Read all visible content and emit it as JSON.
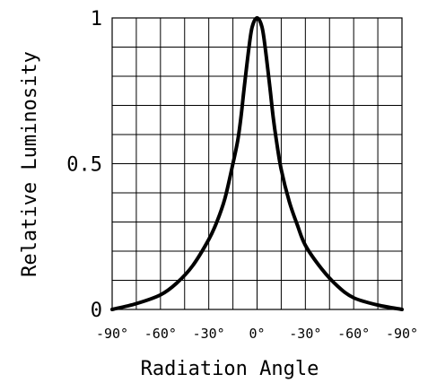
{
  "chart_data": {
    "type": "line",
    "title": "",
    "xlabel": "Radiation Angle",
    "ylabel": "Relative Luminosity",
    "x_tick_labels": [
      "-90°",
      "-60°",
      "-30°",
      "0°",
      "-30°",
      "-60°",
      "-90°"
    ],
    "y_tick_labels": [
      "0",
      "0.5",
      "1"
    ],
    "xlim": [
      -90,
      90
    ],
    "ylim": [
      0,
      1
    ],
    "grid": true,
    "x_grid_step": 15,
    "y_grid_step": 0.1,
    "series": [
      {
        "x": [
          -90,
          -75,
          -60,
          -50,
          -40,
          -30,
          -25,
          -20,
          -15,
          -12,
          -10,
          -8,
          -5,
          -3,
          0,
          3,
          5,
          8,
          10,
          12,
          15,
          20,
          25,
          30,
          40,
          50,
          60,
          75,
          90
        ],
        "y": [
          0,
          0.02,
          0.05,
          0.09,
          0.15,
          0.24,
          0.3,
          0.38,
          0.5,
          0.58,
          0.66,
          0.76,
          0.9,
          0.97,
          1.0,
          0.97,
          0.9,
          0.76,
          0.66,
          0.58,
          0.48,
          0.37,
          0.29,
          0.22,
          0.14,
          0.08,
          0.04,
          0.015,
          0
        ]
      }
    ]
  }
}
